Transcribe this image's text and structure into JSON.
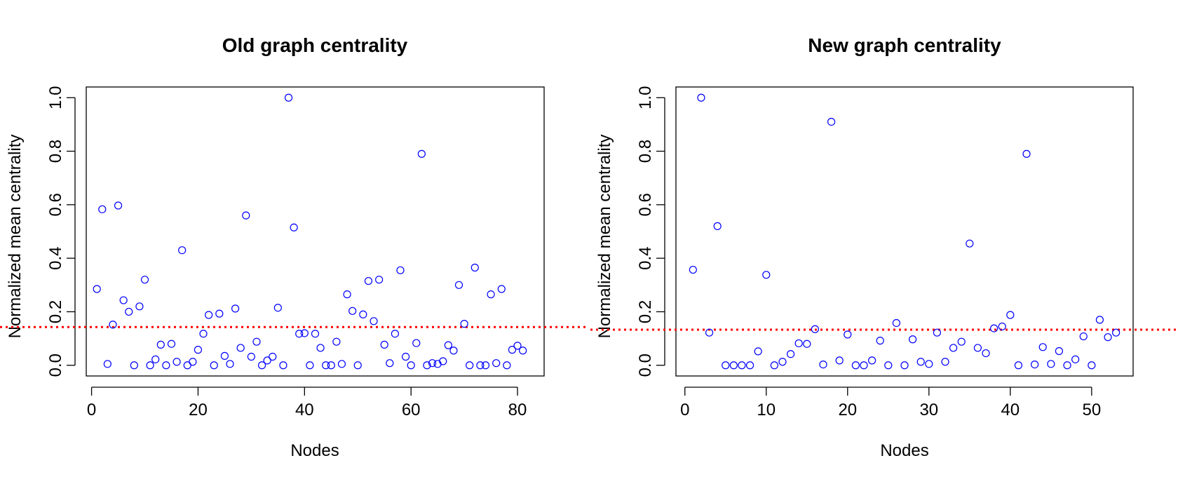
{
  "colors": {
    "points": "#0000ff",
    "threshold": "#ff0000",
    "axis": "#000000",
    "background": "#ffffff"
  },
  "chart_data": [
    {
      "type": "scatter",
      "title": "Old graph centrality",
      "xlabel": "Nodes",
      "ylabel": "Normalized mean centrality",
      "xlim": [
        -1,
        85
      ],
      "ylim": [
        -0.04,
        1.04
      ],
      "xticks": [
        0,
        20,
        40,
        60,
        80
      ],
      "yticks": [
        0.0,
        0.2,
        0.4,
        0.6,
        0.8,
        1.0
      ],
      "xtick_labels": [
        "0",
        "20",
        "40",
        "60",
        "80"
      ],
      "ytick_labels": [
        "0.0",
        "0.2",
        "0.4",
        "0.6",
        "0.8",
        "1.0"
      ],
      "threshold": 0.143,
      "marker": "open-circle",
      "x": [
        1,
        2,
        3,
        4,
        5,
        6,
        7,
        8,
        9,
        10,
        11,
        12,
        13,
        14,
        15,
        16,
        17,
        18,
        19,
        20,
        21,
        22,
        23,
        24,
        25,
        26,
        27,
        28,
        29,
        30,
        31,
        32,
        33,
        34,
        35,
        36,
        37,
        38,
        39,
        40,
        41,
        42,
        43,
        44,
        45,
        46,
        47,
        48,
        49,
        50,
        51,
        52,
        53,
        54,
        55,
        56,
        57,
        58,
        59,
        60,
        61,
        62,
        63,
        64,
        65,
        66,
        67,
        68,
        69,
        70,
        71,
        72,
        73,
        74,
        75,
        76,
        77,
        78,
        79,
        80,
        81
      ],
      "y": [
        0.285,
        0.583,
        0.005,
        0.152,
        0.597,
        0.243,
        0.2,
        0.0,
        0.22,
        0.32,
        0.0,
        0.022,
        0.077,
        0.0,
        0.08,
        0.013,
        0.43,
        0.0,
        0.013,
        0.058,
        0.118,
        0.188,
        0.0,
        0.193,
        0.035,
        0.005,
        0.212,
        0.065,
        0.56,
        0.032,
        0.088,
        0.0,
        0.018,
        0.032,
        0.215,
        0.0,
        1.0,
        0.515,
        0.118,
        0.12,
        0.0,
        0.118,
        0.065,
        0.0,
        0.0,
        0.088,
        0.005,
        0.265,
        0.203,
        0.0,
        0.19,
        0.315,
        0.165,
        0.32,
        0.077,
        0.008,
        0.118,
        0.355,
        0.032,
        0.0,
        0.083,
        0.79,
        0.0,
        0.008,
        0.005,
        0.015,
        0.075,
        0.055,
        0.3,
        0.155,
        0.0,
        0.365,
        0.0,
        0.0,
        0.265,
        0.008,
        0.285,
        0.0,
        0.058,
        0.073,
        0.055
      ]
    },
    {
      "type": "scatter",
      "title": "New graph centrality",
      "xlabel": "Nodes",
      "ylabel": "Normalized mean centrality",
      "xlim": [
        -1.1,
        55.1
      ],
      "ylim": [
        -0.04,
        1.04
      ],
      "xticks": [
        0,
        10,
        20,
        30,
        40,
        50
      ],
      "yticks": [
        0.0,
        0.2,
        0.4,
        0.6,
        0.8,
        1.0
      ],
      "xtick_labels": [
        "0",
        "10",
        "20",
        "30",
        "40",
        "50"
      ],
      "ytick_labels": [
        "0.0",
        "0.2",
        "0.4",
        "0.6",
        "0.8",
        "1.0"
      ],
      "threshold": 0.133,
      "marker": "open-circle",
      "x": [
        1,
        2,
        3,
        4,
        5,
        6,
        7,
        8,
        9,
        10,
        11,
        12,
        13,
        14,
        15,
        16,
        17,
        18,
        19,
        20,
        21,
        22,
        23,
        24,
        25,
        26,
        27,
        28,
        29,
        30,
        31,
        32,
        33,
        34,
        35,
        36,
        37,
        38,
        39,
        40,
        41,
        42,
        43,
        44,
        45,
        46,
        47,
        48,
        49,
        50,
        51,
        52,
        53
      ],
      "y": [
        0.357,
        1.0,
        0.122,
        0.52,
        0.0,
        0.0,
        0.0,
        0.0,
        0.052,
        0.338,
        0.0,
        0.013,
        0.042,
        0.082,
        0.08,
        0.135,
        0.003,
        0.91,
        0.018,
        0.115,
        0.0,
        0.0,
        0.018,
        0.092,
        0.0,
        0.158,
        0.0,
        0.097,
        0.013,
        0.005,
        0.122,
        0.013,
        0.065,
        0.088,
        0.455,
        0.065,
        0.045,
        0.138,
        0.145,
        0.188,
        0.0,
        0.79,
        0.003,
        0.068,
        0.005,
        0.053,
        0.0,
        0.022,
        0.108,
        0.0,
        0.17,
        0.105,
        0.122
      ]
    }
  ]
}
